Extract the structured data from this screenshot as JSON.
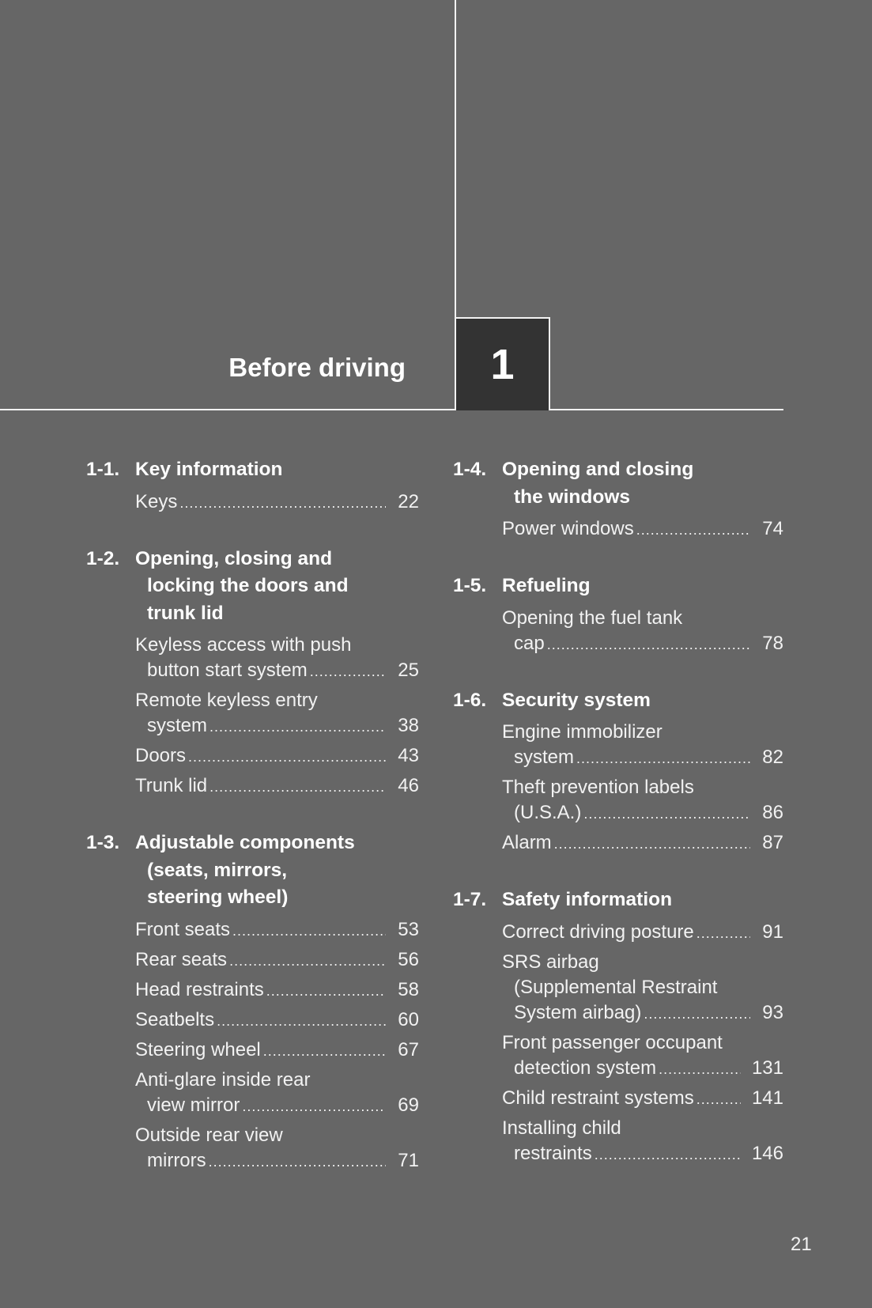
{
  "chapter": {
    "title": "Before driving",
    "number": "1"
  },
  "columns": [
    [
      {
        "num": "1-1.",
        "title": [
          "Key information"
        ],
        "entries": [
          {
            "lines": [
              "Keys"
            ],
            "page": "22"
          }
        ]
      },
      {
        "num": "1-2.",
        "title": [
          "Opening, closing and",
          "locking the doors and",
          "trunk lid"
        ],
        "entries": [
          {
            "lines": [
              "Keyless access with push",
              "button start system"
            ],
            "page": "25"
          },
          {
            "lines": [
              "Remote keyless entry",
              "system"
            ],
            "page": "38"
          },
          {
            "lines": [
              "Doors"
            ],
            "page": "43"
          },
          {
            "lines": [
              "Trunk lid"
            ],
            "page": "46"
          }
        ]
      },
      {
        "num": "1-3.",
        "title": [
          "Adjustable components",
          "(seats, mirrors,",
          "steering wheel)"
        ],
        "entries": [
          {
            "lines": [
              "Front seats"
            ],
            "page": "53"
          },
          {
            "lines": [
              "Rear seats"
            ],
            "page": "56"
          },
          {
            "lines": [
              "Head restraints"
            ],
            "page": "58"
          },
          {
            "lines": [
              "Seatbelts"
            ],
            "page": "60"
          },
          {
            "lines": [
              "Steering wheel"
            ],
            "page": "67"
          },
          {
            "lines": [
              "Anti-glare inside rear",
              "view mirror"
            ],
            "page": "69"
          },
          {
            "lines": [
              "Outside rear view",
              "mirrors"
            ],
            "page": "71"
          }
        ]
      }
    ],
    [
      {
        "num": "1-4.",
        "title": [
          "Opening and closing",
          "the windows"
        ],
        "entries": [
          {
            "lines": [
              "Power windows"
            ],
            "page": "74"
          }
        ]
      },
      {
        "num": "1-5.",
        "title": [
          "Refueling"
        ],
        "entries": [
          {
            "lines": [
              "Opening the fuel tank",
              "cap"
            ],
            "page": "78"
          }
        ]
      },
      {
        "num": "1-6.",
        "title": [
          "Security system"
        ],
        "entries": [
          {
            "lines": [
              "Engine immobilizer",
              "system"
            ],
            "page": "82"
          },
          {
            "lines": [
              "Theft prevention labels",
              "(U.S.A.)"
            ],
            "page": "86"
          },
          {
            "lines": [
              "Alarm"
            ],
            "page": "87"
          }
        ]
      },
      {
        "num": "1-7.",
        "title": [
          "Safety information"
        ],
        "entries": [
          {
            "lines": [
              "Correct driving posture"
            ],
            "page": "91"
          },
          {
            "lines": [
              "SRS airbag",
              "(Supplemental Restraint",
              "System airbag)"
            ],
            "page": "93"
          },
          {
            "lines": [
              "Front passenger occupant",
              "detection system"
            ],
            "page": "131"
          },
          {
            "lines": [
              "Child restraint systems"
            ],
            "page": "141"
          },
          {
            "lines": [
              "Installing child",
              "restraints"
            ],
            "page": "146"
          }
        ]
      }
    ]
  ],
  "page_number": "21",
  "colors": {
    "background": "#666666",
    "chapter_box": "#333333",
    "text": "#f2f2f2"
  }
}
